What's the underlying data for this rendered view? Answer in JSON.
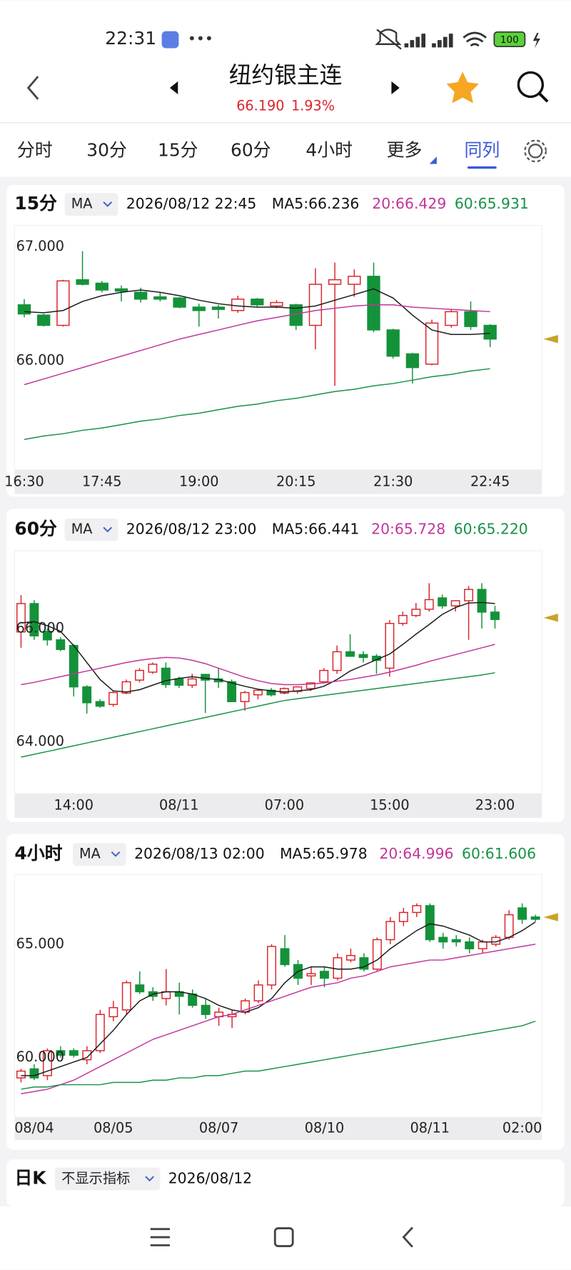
{
  "status_bar": {
    "time": "22:31",
    "battery": "100"
  },
  "header": {
    "title": "纽约银主连",
    "price": "66.190",
    "change": "1.93%"
  },
  "tabs": [
    "分时",
    "30分",
    "15分",
    "60分",
    "4小时",
    "更多",
    "同列"
  ],
  "active_tab": "同列",
  "charts": [
    {
      "type": "candlestick",
      "period": "15分",
      "indicator": "MA",
      "datetime": "2026/08/12 22:45",
      "up_color": "#d9252b",
      "down_color": "#14923a",
      "ylim": [
        65.043,
        67.186
      ],
      "yticks": [
        {
          "value": 67,
          "label": "67.000"
        },
        {
          "value": 66,
          "label": "66.000"
        }
      ],
      "marker": 66.19,
      "categories": [
        "16:30",
        null,
        null,
        null,
        "17:45",
        null,
        null,
        null,
        null,
        "19:00",
        null,
        null,
        null,
        null,
        "20:15",
        null,
        null,
        null,
        null,
        "21:30",
        null,
        null,
        null,
        null,
        "22:45"
      ],
      "candles": [
        [
          66.49,
          66.54,
          66.38,
          66.41
        ],
        [
          66.4,
          66.41,
          66.3,
          66.31
        ],
        [
          66.31,
          66.71,
          66.3,
          66.7
        ],
        [
          66.71,
          66.96,
          66.66,
          66.67
        ],
        [
          66.68,
          66.7,
          66.6,
          66.62
        ],
        [
          66.63,
          66.66,
          66.52,
          66.61
        ],
        [
          66.6,
          66.64,
          66.51,
          66.54
        ],
        [
          66.56,
          66.6,
          66.52,
          66.54
        ],
        [
          66.55,
          66.56,
          66.46,
          66.47
        ],
        [
          66.47,
          66.5,
          66.3,
          66.44
        ],
        [
          66.47,
          66.49,
          66.37,
          66.45
        ],
        [
          66.44,
          66.57,
          66.42,
          66.54
        ],
        [
          66.54,
          66.55,
          66.47,
          66.49
        ],
        [
          66.48,
          66.53,
          66.46,
          66.51
        ],
        [
          66.49,
          66.5,
          66.27,
          66.31
        ],
        [
          66.31,
          66.81,
          66.1,
          66.67
        ],
        [
          66.67,
          66.86,
          65.78,
          66.71
        ],
        [
          66.67,
          66.8,
          66.56,
          66.74
        ],
        [
          66.74,
          66.86,
          66.25,
          66.27
        ],
        [
          66.27,
          66.28,
          66.02,
          66.04
        ],
        [
          66.06,
          66.07,
          65.8,
          65.94
        ],
        [
          65.97,
          66.36,
          65.96,
          66.33
        ],
        [
          66.31,
          66.45,
          66.29,
          66.43
        ],
        [
          66.43,
          66.52,
          66.27,
          66.3
        ],
        [
          66.31,
          66.32,
          66.12,
          66.19
        ]
      ],
      "ma": [
        {
          "label": "MA5:66.236",
          "color": "#1a1a1a",
          "values": [
            66.43,
            66.42,
            66.44,
            66.52,
            66.57,
            66.6,
            66.62,
            66.6,
            66.57,
            66.53,
            66.5,
            66.48,
            66.47,
            66.47,
            66.46,
            66.48,
            66.53,
            66.58,
            66.63,
            66.55,
            66.4,
            66.27,
            66.23,
            66.23,
            66.24
          ]
        },
        {
          "label": "20:66.429",
          "color": "#c2359a",
          "values": [
            65.79,
            65.84,
            65.89,
            65.94,
            65.99,
            66.04,
            66.09,
            66.14,
            66.19,
            66.23,
            66.27,
            66.31,
            66.35,
            66.38,
            66.41,
            66.44,
            66.46,
            66.48,
            66.49,
            66.49,
            66.47,
            66.46,
            66.45,
            66.44,
            66.43
          ]
        },
        {
          "label": "60:65.931",
          "color": "#179247",
          "values": [
            65.31,
            65.34,
            65.36,
            65.39,
            65.41,
            65.44,
            65.47,
            65.49,
            65.52,
            65.54,
            65.57,
            65.6,
            65.62,
            65.65,
            65.67,
            65.7,
            65.73,
            65.75,
            65.78,
            65.8,
            65.83,
            65.86,
            65.88,
            65.91,
            65.93
          ]
        }
      ]
    },
    {
      "type": "candlestick",
      "period": "60分",
      "indicator": "MA",
      "datetime": "2026/08/12 23:00",
      "up_color": "#d9252b",
      "down_color": "#14923a",
      "ylim": [
        63.086,
        67.371
      ],
      "yticks": [
        {
          "value": 66,
          "label": "66.000"
        },
        {
          "value": 64,
          "label": "64.000"
        }
      ],
      "marker": 66.19,
      "categories": [
        null,
        null,
        null,
        null,
        "14:00",
        null,
        null,
        null,
        null,
        null,
        null,
        null,
        "08/11",
        null,
        null,
        null,
        null,
        null,
        null,
        null,
        "07:00",
        null,
        null,
        null,
        null,
        null,
        null,
        null,
        "15:00",
        null,
        null,
        null,
        null,
        null,
        null,
        null,
        "23:00"
      ],
      "candles": [
        [
          65.94,
          66.59,
          65.66,
          66.44
        ],
        [
          66.44,
          66.5,
          65.8,
          65.87
        ],
        [
          65.95,
          66.0,
          65.7,
          65.8
        ],
        [
          65.8,
          65.85,
          65.6,
          65.63
        ],
        [
          65.7,
          65.72,
          64.8,
          64.97
        ],
        [
          64.97,
          65.0,
          64.5,
          64.69
        ],
        [
          64.71,
          64.75,
          64.6,
          64.63
        ],
        [
          64.66,
          64.9,
          64.62,
          64.87
        ],
        [
          64.86,
          65.1,
          64.84,
          65.06
        ],
        [
          65.09,
          65.3,
          65.05,
          65.26
        ],
        [
          65.23,
          65.4,
          65.2,
          65.37
        ],
        [
          65.3,
          65.4,
          64.95,
          65.01
        ],
        [
          65.11,
          65.15,
          64.95,
          65.0
        ],
        [
          65.0,
          65.2,
          64.95,
          65.11
        ],
        [
          65.19,
          65.2,
          64.51,
          65.09
        ],
        [
          65.11,
          65.3,
          64.95,
          65.06
        ],
        [
          65.06,
          65.1,
          64.7,
          64.71
        ],
        [
          64.71,
          64.9,
          64.55,
          64.87
        ],
        [
          64.83,
          64.92,
          64.75,
          64.91
        ],
        [
          64.91,
          64.95,
          64.8,
          64.83
        ],
        [
          64.86,
          64.96,
          64.84,
          64.94
        ],
        [
          64.89,
          64.98,
          64.85,
          64.97
        ],
        [
          64.94,
          65.05,
          64.9,
          65.04
        ],
        [
          65.06,
          65.3,
          65.04,
          65.26
        ],
        [
          65.26,
          65.7,
          65.2,
          65.59
        ],
        [
          65.59,
          65.9,
          65.5,
          65.51
        ],
        [
          65.54,
          65.6,
          65.4,
          65.49
        ],
        [
          65.51,
          65.55,
          65.2,
          65.44
        ],
        [
          65.3,
          66.15,
          65.15,
          66.09
        ],
        [
          66.09,
          66.3,
          66.05,
          66.23
        ],
        [
          66.23,
          66.45,
          66.2,
          66.34
        ],
        [
          66.34,
          66.8,
          66.3,
          66.51
        ],
        [
          66.54,
          66.6,
          66.35,
          66.4
        ],
        [
          66.4,
          66.5,
          66.3,
          66.49
        ],
        [
          66.49,
          66.75,
          65.8,
          66.69
        ],
        [
          66.69,
          66.8,
          66.0,
          66.29
        ],
        [
          66.29,
          66.4,
          66.0,
          66.16
        ]
      ],
      "ma": [
        {
          "label": "MA5:66.441",
          "color": "#1a1a1a",
          "values": [
            66.1,
            66.12,
            66.05,
            65.95,
            65.7,
            65.4,
            65.1,
            64.9,
            64.88,
            64.92,
            65.0,
            65.08,
            65.12,
            65.15,
            65.12,
            65.1,
            65.04,
            64.98,
            64.93,
            64.9,
            64.88,
            64.9,
            64.92,
            64.98,
            65.1,
            65.25,
            65.35,
            65.45,
            65.55,
            65.72,
            65.9,
            66.07,
            66.25,
            66.37,
            66.45,
            66.46,
            66.44
          ]
        },
        {
          "label": "20:65.728",
          "color": "#c2359a",
          "values": [
            65.01,
            65.05,
            65.1,
            65.15,
            65.2,
            65.25,
            65.3,
            65.35,
            65.4,
            65.44,
            65.47,
            65.49,
            65.48,
            65.44,
            65.38,
            65.3,
            65.22,
            65.14,
            65.08,
            65.03,
            65.01,
            65.01,
            65.02,
            65.04,
            65.07,
            65.1,
            65.14,
            65.18,
            65.23,
            65.29,
            65.35,
            65.42,
            65.48,
            65.54,
            65.6,
            65.66,
            65.72
          ]
        },
        {
          "label": "60:65.220",
          "color": "#179247",
          "values": [
            63.73,
            63.78,
            63.83,
            63.88,
            63.93,
            63.98,
            64.03,
            64.08,
            64.13,
            64.18,
            64.23,
            64.28,
            64.33,
            64.38,
            64.43,
            64.48,
            64.53,
            64.58,
            64.63,
            64.68,
            64.73,
            64.76,
            64.79,
            64.82,
            64.85,
            64.88,
            64.91,
            64.94,
            64.97,
            65.0,
            65.03,
            65.06,
            65.09,
            65.12,
            65.15,
            65.18,
            65.22
          ]
        }
      ]
    },
    {
      "type": "candlestick",
      "period": "4小时",
      "indicator": "MA",
      "datetime": "2026/08/13 02:00",
      "up_color": "#d9252b",
      "down_color": "#14923a",
      "ylim": [
        57.357,
        68.071
      ],
      "yticks": [
        {
          "value": 65,
          "label": "65.000"
        },
        {
          "value": 60,
          "label": "60.000"
        }
      ],
      "marker": 66.19,
      "categories": [
        null,
        "08/04",
        null,
        null,
        null,
        null,
        null,
        "08/05",
        null,
        null,
        null,
        null,
        null,
        null,
        null,
        "08/07",
        null,
        null,
        null,
        null,
        null,
        null,
        null,
        "08/10",
        null,
        null,
        null,
        null,
        null,
        null,
        null,
        "08/11",
        null,
        null,
        null,
        null,
        null,
        null,
        "02:00",
        null
      ],
      "candles": [
        [
          59.1,
          59.5,
          58.9,
          59.4
        ],
        [
          59.5,
          59.7,
          59.0,
          59.1
        ],
        [
          59.2,
          60.4,
          59.0,
          60.3
        ],
        [
          60.3,
          60.5,
          60.0,
          60.1
        ],
        [
          60.3,
          60.4,
          60.0,
          60.1
        ],
        [
          59.9,
          60.5,
          59.7,
          60.3
        ],
        [
          60.3,
          62.1,
          60.2,
          61.9
        ],
        [
          61.8,
          62.5,
          61.6,
          62.2
        ],
        [
          62.1,
          63.4,
          61.9,
          63.3
        ],
        [
          63.2,
          63.8,
          62.8,
          62.9
        ],
        [
          62.9,
          63.1,
          62.5,
          62.7
        ],
        [
          62.6,
          63.9,
          62.3,
          62.9
        ],
        [
          62.9,
          63.3,
          61.9,
          62.7
        ],
        [
          62.8,
          63.0,
          62.2,
          62.3
        ],
        [
          62.3,
          62.6,
          61.7,
          61.9
        ],
        [
          61.8,
          62.2,
          61.4,
          62.0
        ],
        [
          61.8,
          62.1,
          61.3,
          61.9
        ],
        [
          62.0,
          62.6,
          61.9,
          62.5
        ],
        [
          62.5,
          63.4,
          62.4,
          63.2
        ],
        [
          63.2,
          65.0,
          63.0,
          64.9
        ],
        [
          64.8,
          65.4,
          64.0,
          64.1
        ],
        [
          64.1,
          64.3,
          63.2,
          63.5
        ],
        [
          63.6,
          64.0,
          63.2,
          63.7
        ],
        [
          63.8,
          64.0,
          63.1,
          63.5
        ],
        [
          63.5,
          64.6,
          63.4,
          64.4
        ],
        [
          64.3,
          64.8,
          64.2,
          64.5
        ],
        [
          64.4,
          64.6,
          63.8,
          63.9
        ],
        [
          63.9,
          65.3,
          63.8,
          65.2
        ],
        [
          65.2,
          66.2,
          65.0,
          66.0
        ],
        [
          66.0,
          66.6,
          65.8,
          66.4
        ],
        [
          66.4,
          66.8,
          66.2,
          66.7
        ],
        [
          66.7,
          66.8,
          65.1,
          65.2
        ],
        [
          65.3,
          65.5,
          64.8,
          65.1
        ],
        [
          65.2,
          65.4,
          64.9,
          65.1
        ],
        [
          65.1,
          65.3,
          64.6,
          64.8
        ],
        [
          64.8,
          65.2,
          64.6,
          65.1
        ],
        [
          65.0,
          65.4,
          64.9,
          65.3
        ],
        [
          65.3,
          66.5,
          65.2,
          66.3
        ],
        [
          66.6,
          66.8,
          65.9,
          66.1
        ],
        [
          66.2,
          66.3,
          66.0,
          66.1
        ]
      ],
      "ma": [
        {
          "label": "MA5:65.978",
          "color": "#1a1a1a",
          "values": [
            59.2,
            59.2,
            59.4,
            59.6,
            59.8,
            60.0,
            60.6,
            61.2,
            61.9,
            62.5,
            62.8,
            62.9,
            62.9,
            62.8,
            62.6,
            62.3,
            62.1,
            62.0,
            62.2,
            62.6,
            63.3,
            63.8,
            64.0,
            64.0,
            63.9,
            63.9,
            64.0,
            64.3,
            64.8,
            65.2,
            65.6,
            65.9,
            65.8,
            65.6,
            65.4,
            65.1,
            65.1,
            65.3,
            65.6,
            65.98
          ]
        },
        {
          "label": "20:64.996",
          "color": "#c2359a",
          "values": [
            58.4,
            58.5,
            58.6,
            58.8,
            59.0,
            59.3,
            59.6,
            59.9,
            60.2,
            60.5,
            60.8,
            61.0,
            61.2,
            61.4,
            61.6,
            61.8,
            61.9,
            62.1,
            62.3,
            62.5,
            62.7,
            62.9,
            63.1,
            63.2,
            63.3,
            63.5,
            63.6,
            63.8,
            64.0,
            64.1,
            64.2,
            64.3,
            64.3,
            64.4,
            64.5,
            64.6,
            64.7,
            64.8,
            64.9,
            65.0
          ]
        },
        {
          "label": "60:61.606",
          "color": "#179247",
          "values": [
            58.6,
            58.7,
            58.7,
            58.8,
            58.8,
            58.8,
            58.8,
            58.9,
            58.9,
            58.9,
            59.0,
            59.0,
            59.1,
            59.1,
            59.2,
            59.2,
            59.3,
            59.4,
            59.4,
            59.5,
            59.6,
            59.7,
            59.8,
            59.9,
            60.0,
            60.1,
            60.2,
            60.3,
            60.4,
            60.5,
            60.6,
            60.7,
            60.8,
            60.9,
            61.0,
            61.1,
            61.2,
            61.3,
            61.4,
            61.6
          ]
        }
      ]
    }
  ],
  "daily": {
    "period": "日K",
    "indicator": "不显示指标",
    "datetime": "2026/08/12"
  }
}
